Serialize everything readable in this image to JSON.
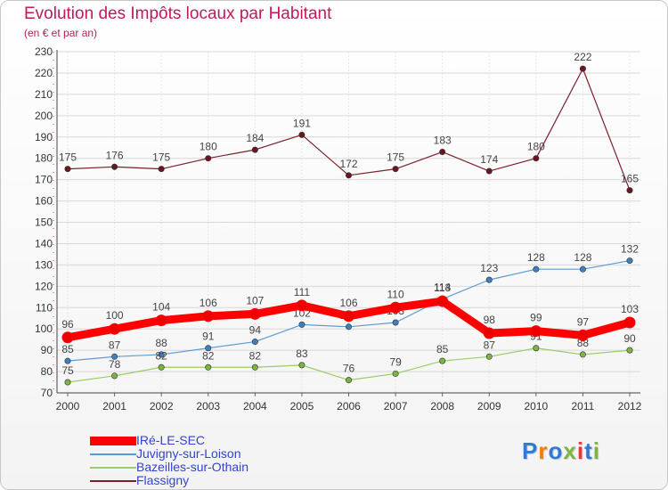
{
  "title": "Evolution des Impôts locaux par Habitant",
  "subtitle": "(en € et par an)",
  "logo": {
    "text": "Proxiti",
    "colors": [
      "#2e7bd6",
      "#f57c00",
      "#2e7bd6",
      "#7cb342",
      "#e53935",
      "#2e7bd6",
      "#7cb342"
    ]
  },
  "chart_data": {
    "type": "line",
    "title": "Evolution des Impôts locaux par Habitant",
    "subtitle": "(en € et par an)",
    "xlabel": "",
    "ylabel": "",
    "ylim": [
      70,
      230
    ],
    "ytick_step": 10,
    "x": [
      "2000",
      "2001",
      "2002",
      "2003",
      "2004",
      "2005",
      "2006",
      "2007",
      "2008",
      "2009",
      "2010",
      "2011",
      "2012"
    ],
    "series": [
      {
        "name": "Flassigny",
        "color": "#7b1f2a",
        "marker": "#6a1520",
        "width": 1.2,
        "values": [
          175,
          176,
          175,
          180,
          184,
          191,
          172,
          175,
          183,
          174,
          180,
          222,
          165
        ]
      },
      {
        "name": "Juvigny-sur-Loison",
        "color": "#5b9bd5",
        "marker": "#3d7fc0",
        "width": 1.2,
        "values": [
          85,
          87,
          88,
          91,
          94,
          102,
          101,
          103,
          114,
          123,
          128,
          128,
          132
        ]
      },
      {
        "name": "Bazeilles-sur-Othain",
        "color": "#9ccc65",
        "marker": "#7cb342",
        "width": 1.2,
        "values": [
          75,
          78,
          82,
          82,
          82,
          83,
          76,
          79,
          85,
          87,
          91,
          88,
          90
        ]
      },
      {
        "name": "IRé-LE-SEC",
        "color": "#ff0000",
        "marker": "#ee0000",
        "width": 9,
        "values": [
          96,
          100,
          104,
          106,
          107,
          111,
          106,
          110,
          113,
          98,
          99,
          97,
          103
        ]
      }
    ],
    "legend": [
      {
        "name": "IRé-LE-SEC",
        "color": "#ff0000",
        "thick": true
      },
      {
        "name": "Juvigny-sur-Loison",
        "color": "#5b9bd5",
        "thick": false
      },
      {
        "name": "Bazeilles-sur-Othain",
        "color": "#9ccc65",
        "thick": false
      },
      {
        "name": "Flassigny",
        "color": "#7b1f2a",
        "thick": false
      }
    ],
    "legend_position": "bottom-left",
    "grid": true
  }
}
